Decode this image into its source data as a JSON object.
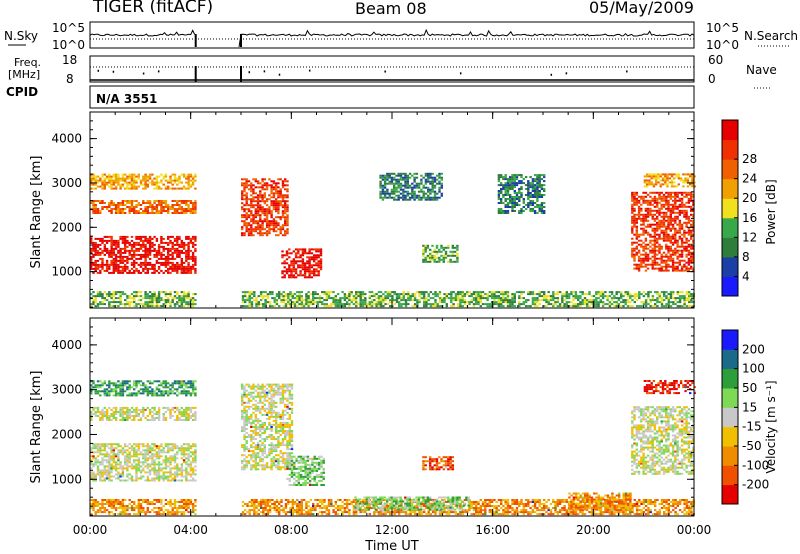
{
  "header": {
    "title": "TIGER (fitACF)",
    "beam": "Beam 08",
    "date": "05/May/2009"
  },
  "labels": {
    "nsky": "N.Sky",
    "nsearch": "N.Search",
    "freq": "Freq.",
    "mhz": "[MHz]",
    "nave": "Nave",
    "cpid": "CPID",
    "cpid_value": "N/A 3551"
  },
  "colors": {
    "gray": "#c8c8c8",
    "power_scale": [
      "#1a1aff",
      "#1a3fa6",
      "#2e7d3a",
      "#39a84a",
      "#f0e01e",
      "#f0a000",
      "#f06000",
      "#f03000",
      "#e60000"
    ],
    "velocity_scale": [
      "#e60000",
      "#f05000",
      "#f08c00",
      "#f0c000",
      "#c8c8c8",
      "#7ed957",
      "#2e9e3a",
      "#1a6b8a",
      "#1a1aff"
    ]
  },
  "chart_data": [
    {
      "type": "line",
      "name": "N.Sky / N.Search",
      "y_ticks": [
        "10^5",
        "10^0"
      ],
      "y2_ticks": [
        "10^5",
        "10^0"
      ],
      "data_gaps_ut": [
        [
          4.2,
          6.0
        ]
      ]
    },
    {
      "type": "scatter",
      "name": "Freq / Nave",
      "y_ticks": [
        "18",
        "8"
      ],
      "y2_ticks": [
        "60",
        "0"
      ],
      "data_gaps_ut": [
        [
          4.2,
          6.0
        ]
      ]
    },
    {
      "type": "heatmap",
      "name": "Power",
      "ylabel": "Slant Range [km]",
      "y_ticks": [
        1000,
        2000,
        3000,
        4000
      ],
      "ylim": [
        180,
        4600
      ],
      "x_ticks": [
        "00:00",
        "04:00",
        "08:00",
        "12:00",
        "16:00",
        "20:00",
        "00:00"
      ],
      "colorbar_label": "Power [dB]",
      "colorbar_ticks": [
        4,
        8,
        12,
        16,
        20,
        24,
        28
      ],
      "data_gaps_ut": [
        [
          4.2,
          6.0
        ]
      ],
      "echo_regions": [
        {
          "t": [
            0.0,
            4.2
          ],
          "r": [
            950,
            1800
          ],
          "level": 8
        },
        {
          "t": [
            0.0,
            4.2
          ],
          "r": [
            2300,
            2600
          ],
          "level": 6
        },
        {
          "t": [
            0.0,
            4.2
          ],
          "r": [
            2850,
            3200
          ],
          "level": 5
        },
        {
          "t": [
            6.0,
            7.8
          ],
          "r": [
            1800,
            3100
          ],
          "level": 7
        },
        {
          "t": [
            7.6,
            9.2
          ],
          "r": [
            850,
            1500
          ],
          "level": 8
        },
        {
          "t": [
            11.5,
            14.0
          ],
          "r": [
            2600,
            3200
          ],
          "level": 2
        },
        {
          "t": [
            13.2,
            14.6
          ],
          "r": [
            1200,
            1600
          ],
          "level": 3
        },
        {
          "t": [
            16.2,
            18.0
          ],
          "r": [
            2300,
            3200
          ],
          "level": 2
        },
        {
          "t": [
            21.5,
            24.0
          ],
          "r": [
            1000,
            2800
          ],
          "level": 7
        },
        {
          "t": [
            22.0,
            24.0
          ],
          "r": [
            2900,
            3200
          ],
          "level": 5
        },
        {
          "t": [
            0.0,
            24.0
          ],
          "r": [
            200,
            550
          ],
          "level": 3
        }
      ]
    },
    {
      "type": "heatmap",
      "name": "Velocity",
      "ylabel": "Slant Range [km]",
      "y_ticks": [
        1000,
        2000,
        3000,
        4000
      ],
      "ylim": [
        180,
        4600
      ],
      "xlabel": "Time UT",
      "x_ticks": [
        "00:00",
        "04:00",
        "08:00",
        "12:00",
        "16:00",
        "20:00",
        "00:00"
      ],
      "colorbar_label": "Velocity [m s^-1]",
      "colorbar_ticks": [
        -200,
        -100,
        -50,
        -15,
        15,
        50,
        100,
        200
      ],
      "data_gaps_ut": [
        [
          4.2,
          6.0
        ]
      ],
      "echo_regions": [
        {
          "t": [
            0.0,
            4.2
          ],
          "r": [
            950,
            1800
          ],
          "level": 4
        },
        {
          "t": [
            0.0,
            4.2
          ],
          "r": [
            2300,
            2600
          ],
          "level": 4
        },
        {
          "t": [
            0.0,
            4.2
          ],
          "r": [
            2850,
            3200
          ],
          "level": 6
        },
        {
          "t": [
            6.0,
            8.0
          ],
          "r": [
            1200,
            3100
          ],
          "level": 4
        },
        {
          "t": [
            7.8,
            9.3
          ],
          "r": [
            850,
            1500
          ],
          "level": 5
        },
        {
          "t": [
            13.2,
            14.4
          ],
          "r": [
            1200,
            1500
          ],
          "level": 1
        },
        {
          "t": [
            0.0,
            24.0
          ],
          "r": [
            200,
            550
          ],
          "level": 2
        },
        {
          "t": [
            10.5,
            15.0
          ],
          "r": [
            300,
            600
          ],
          "level": 5
        },
        {
          "t": [
            19.0,
            21.5
          ],
          "r": [
            300,
            700
          ],
          "level": 2
        },
        {
          "t": [
            21.5,
            24.0
          ],
          "r": [
            1100,
            2600
          ],
          "level": 4
        },
        {
          "t": [
            22.0,
            24.0
          ],
          "r": [
            2900,
            3200
          ],
          "level": 0
        }
      ]
    }
  ]
}
